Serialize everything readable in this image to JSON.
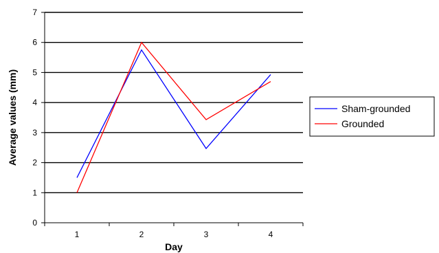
{
  "chart_data": {
    "type": "line",
    "title": "",
    "xlabel": "Day",
    "ylabel": "Average values (mm)",
    "categories": [
      "1",
      "2",
      "3",
      "4"
    ],
    "ylim": [
      0,
      7
    ],
    "yticks": [
      "0",
      "1",
      "2",
      "3",
      "4",
      "5",
      "6",
      "7"
    ],
    "grid": true,
    "legend_position": "right",
    "series": [
      {
        "name": "Sham-grounded",
        "color": "#0000ff",
        "values": [
          1.5,
          5.75,
          2.47,
          4.93
        ]
      },
      {
        "name": "Grounded",
        "color": "#ff0000",
        "values": [
          1.0,
          6.0,
          3.43,
          4.7
        ]
      }
    ]
  }
}
